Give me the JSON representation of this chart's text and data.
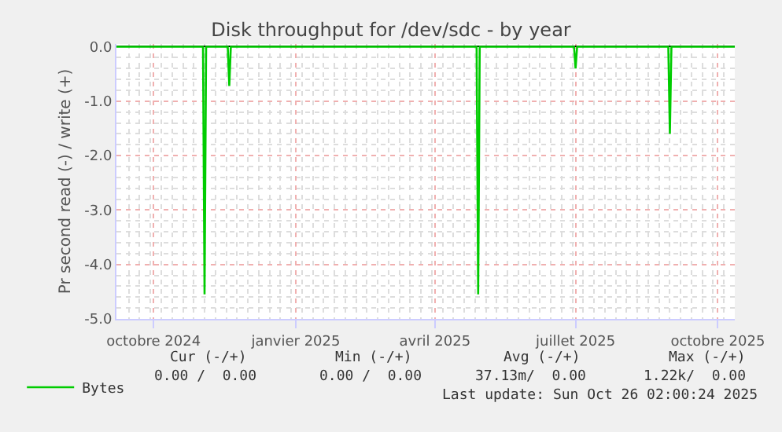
{
  "chart_data": {
    "type": "line",
    "title": "Disk throughput for /dev/sdc - by year",
    "ylabel": "Pr second read (-) / write (+)",
    "xlim": [
      "2024-09-07",
      "2025-10-12"
    ],
    "xticks": [
      {
        "value": "2024-10-01",
        "label": "octobre 2024"
      },
      {
        "value": "2025-01-01",
        "label": "janvier 2025"
      },
      {
        "value": "2025-04-01",
        "label": "avril 2025"
      },
      {
        "value": "2025-07-01",
        "label": "juillet 2025"
      },
      {
        "value": "2025-10-01",
        "label": "octobre 2025"
      }
    ],
    "ylim": [
      -5,
      0.05
    ],
    "yticks": [
      {
        "value": 0,
        "label": "0.0"
      },
      {
        "value": -1,
        "label": "-1.0"
      },
      {
        "value": -2,
        "label": "-2.0"
      },
      {
        "value": -3,
        "label": "-3.0"
      },
      {
        "value": -4,
        "label": "-4.0"
      },
      {
        "value": -5,
        "label": "-5.0"
      }
    ],
    "series": [
      {
        "name": "Bytes",
        "color": "#00cc00",
        "x": [
          "2024-09-07",
          "2024-11-02",
          "2024-11-03",
          "2024-11-04",
          "2024-11-18",
          "2024-11-19",
          "2024-11-20",
          "2025-04-28",
          "2025-04-29",
          "2025-04-30",
          "2025-06-30",
          "2025-07-01",
          "2025-07-02",
          "2025-08-30",
          "2025-08-31",
          "2025-09-01",
          "2025-10-12"
        ],
        "values": [
          0,
          0,
          -4.55,
          0,
          0,
          -0.72,
          0,
          0,
          -4.55,
          0,
          0,
          -0.4,
          0,
          0,
          -1.6,
          0,
          0
        ]
      }
    ],
    "grid": true,
    "legend": "bottom left",
    "marker": "none",
    "line_style": "solid",
    "annotations": [
      "Cur (-/+)",
      "Min (-/+)",
      "Avg (-/+)",
      "Max (-/+)",
      "0.00 /  0.00",
      "0.00 /  0.00",
      "37.13m/  0.00",
      "1.22k/  0.00",
      "Last update: Sun Oct 26 02:00:24 2025"
    ]
  }
}
